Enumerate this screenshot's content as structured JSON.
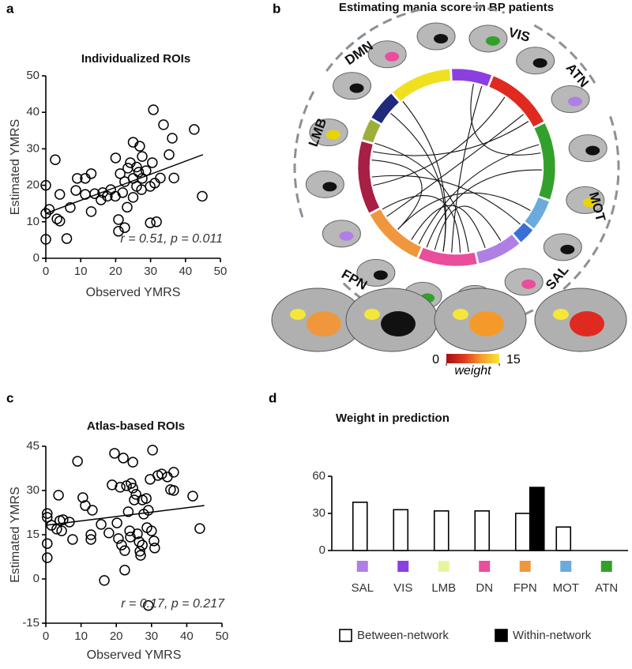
{
  "chart_data": [
    {
      "type": "scatter",
      "panel_label": "a",
      "title": "Individualized ROIs",
      "x_label": "Observed YMRS",
      "y_label": "Estimated YMRS",
      "x": [
        0,
        0,
        0,
        1,
        2.7,
        4,
        3.2,
        4,
        6,
        7,
        8.6,
        9,
        11.3,
        11.3,
        13,
        13,
        14,
        15.8,
        16.3,
        17.6,
        18.6,
        19.9,
        20,
        20.8,
        20.8,
        21.3,
        22,
        22.6,
        22.6,
        23.3,
        23.5,
        24.2,
        25,
        25,
        25,
        26,
        26,
        26.6,
        26.9,
        27.4,
        27.6,
        27.6,
        28.7,
        29.9,
        29.9,
        30.5,
        30.8,
        31.2,
        31.7,
        32.8,
        33.7,
        35.3,
        36.2,
        36.7,
        42.5,
        44.8
      ],
      "y": [
        20,
        12.3,
        5.2,
        13.4,
        27,
        17.5,
        10.8,
        10.2,
        5.4,
        13.9,
        18.6,
        21.9,
        21.9,
        17.5,
        23.2,
        12.8,
        17.7,
        16,
        18,
        17,
        18.8,
        17,
        27.5,
        10.6,
        7.4,
        23.2,
        18,
        21,
        8.4,
        14,
        24.7,
        26.2,
        31.8,
        21.9,
        16.7,
        25,
        19.7,
        23.6,
        30.7,
        18.8,
        27.9,
        21.9,
        24,
        19.7,
        9.7,
        26.2,
        40.7,
        20.6,
        10,
        22,
        36.6,
        28.4,
        32.9,
        22,
        35.3,
        17
      ],
      "xlim": [
        0,
        50
      ],
      "ylim": [
        0,
        50
      ],
      "xticks": [
        0,
        10,
        20,
        30,
        40,
        50
      ],
      "yticks": [
        0,
        10,
        20,
        30,
        40,
        50
      ],
      "trendline": {
        "x": [
          0,
          45
        ],
        "y": [
          12.3,
          28.4
        ]
      },
      "annotation": "r = 0.51, p = 0.011"
    },
    {
      "type": "chord",
      "panel_label": "b",
      "title": "Estimating mania score in BP patients",
      "groups": [
        "DMN",
        "VIS",
        "ATN",
        "MOT",
        "SAL",
        "FPN",
        "LMB"
      ],
      "colorbar": {
        "label": "weight",
        "lim": [
          0,
          15
        ],
        "ticks": [
          0,
          15
        ]
      }
    },
    {
      "type": "scatter",
      "panel_label": "c",
      "title": "Atlas-based ROIs",
      "x_label": "Observed YMRS",
      "y_label": "Estimated YMRS",
      "x": [
        0.4,
        0.4,
        0.4,
        0.4,
        1.6,
        3.1,
        3.6,
        4,
        4.5,
        4.9,
        6.7,
        7.6,
        9,
        10.5,
        11.2,
        12.8,
        12.8,
        13.2,
        15.7,
        16.6,
        17.9,
        18.8,
        19.5,
        20.2,
        20.6,
        21.1,
        21.5,
        22,
        22.4,
        22.4,
        22.9,
        23.4,
        23.8,
        24,
        24.2,
        24.7,
        24.7,
        25.1,
        25.6,
        26,
        26.5,
        26.7,
        26.9,
        27.4,
        27.4,
        27.8,
        28.5,
        28.7,
        29.1,
        29.1,
        29.6,
        30,
        30.3,
        30.7,
        30.9,
        31.8,
        32.9,
        34.5,
        35.4,
        36.3,
        36.3,
        41.7,
        43.7
      ],
      "y": [
        22.2,
        20.9,
        12,
        7.2,
        18.2,
        16.9,
        28.4,
        19.8,
        16.3,
        20.1,
        19.3,
        13.4,
        39.9,
        27.6,
        24.9,
        15,
        13.4,
        23.3,
        18.5,
        -0.5,
        15.6,
        31.9,
        42.6,
        19,
        13.7,
        31.1,
        11.5,
        41,
        9.6,
        3,
        31.6,
        22.8,
        16.3,
        14.2,
        32.4,
        30.8,
        39.6,
        26.8,
        28.7,
        15.3,
        12.6,
        9.4,
        8,
        26.8,
        11.5,
        22,
        27.3,
        17.4,
        23.3,
        -9,
        33.8,
        16.3,
        43.7,
        12.9,
        10.5,
        35.1,
        35.6,
        34.6,
        30.3,
        36.2,
        30,
        28.1,
        17.1
      ],
      "xlim": [
        0,
        50
      ],
      "ylim": [
        -15,
        45
      ],
      "xticks": [
        0,
        10,
        20,
        30,
        40,
        50
      ],
      "yticks": [
        -15,
        0,
        15,
        30,
        45
      ],
      "trendline": {
        "x": [
          0,
          45
        ],
        "y": [
          18.2,
          24.9
        ]
      },
      "annotation": "r = 0.17, p = 0.217"
    },
    {
      "type": "bar",
      "panel_label": "d",
      "title": "Weight in prediction",
      "categories": [
        "SAL",
        "VIS",
        "LMB",
        "DN",
        "FPN",
        "MOT",
        "ATN"
      ],
      "category_colors": [
        "#b07fe6",
        "#8b3fe0",
        "#e8f5a0",
        "#e94d9b",
        "#f0973e",
        "#6aabdc",
        "#33a02c"
      ],
      "series": [
        {
          "name": "Between-network",
          "color": "#ffffff",
          "values": [
            39,
            33,
            32,
            32,
            30,
            19,
            0
          ]
        },
        {
          "name": "Within-network",
          "color": "#000000",
          "values": [
            0,
            0,
            0,
            0,
            51,
            0,
            0
          ]
        }
      ],
      "ylim": [
        0,
        60
      ],
      "yticks": [
        0,
        30,
        60
      ]
    }
  ]
}
